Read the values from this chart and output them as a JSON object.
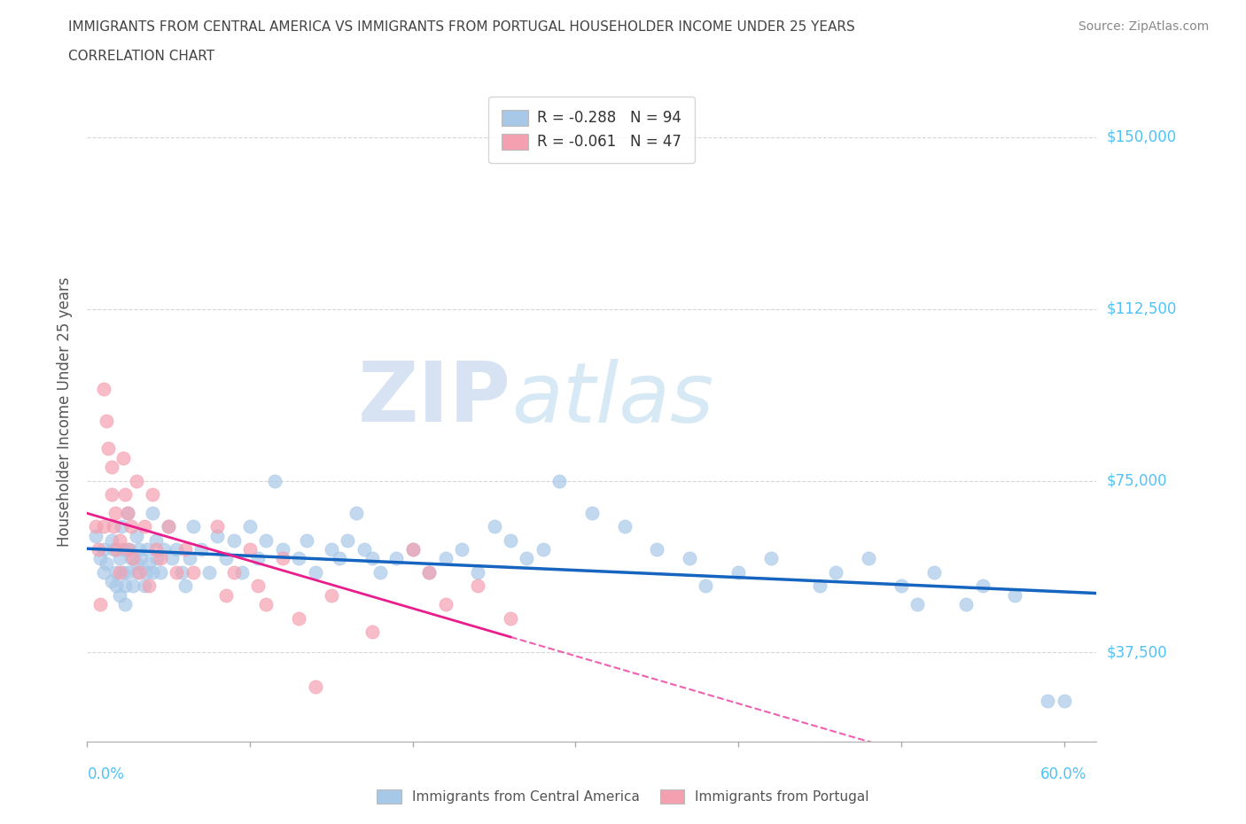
{
  "title_line1": "IMMIGRANTS FROM CENTRAL AMERICA VS IMMIGRANTS FROM PORTUGAL HOUSEHOLDER INCOME UNDER 25 YEARS",
  "title_line2": "CORRELATION CHART",
  "source_text": "Source: ZipAtlas.com",
  "ylabel": "Householder Income Under 25 years",
  "xlim": [
    0.0,
    0.62
  ],
  "ylim": [
    18000,
    162000
  ],
  "yticks": [
    37500,
    75000,
    112500,
    150000
  ],
  "ytick_labels": [
    "$37,500",
    "$75,000",
    "$112,500",
    "$150,000"
  ],
  "xticks": [
    0.0,
    0.1,
    0.2,
    0.3,
    0.4,
    0.5,
    0.6
  ],
  "watermark_zip": "ZIP",
  "watermark_atlas": "atlas",
  "blue_color": "#a8c8e8",
  "pink_color": "#f4a0b0",
  "blue_line_color": "#1565C0",
  "pink_line_color": "#E91E8C",
  "text_color": "#4fc3f7",
  "title_color": "#555555",
  "legend_r1": "R = -0.288",
  "legend_n1": "N = 94",
  "legend_r2": "R = -0.061",
  "legend_n2": "N = 47",
  "blue_scatter_x": [
    0.005,
    0.008,
    0.01,
    0.01,
    0.012,
    0.015,
    0.015,
    0.016,
    0.018,
    0.018,
    0.02,
    0.02,
    0.021,
    0.022,
    0.022,
    0.023,
    0.023,
    0.025,
    0.025,
    0.026,
    0.027,
    0.028,
    0.03,
    0.03,
    0.031,
    0.032,
    0.033,
    0.035,
    0.036,
    0.037,
    0.038,
    0.04,
    0.04,
    0.042,
    0.043,
    0.045,
    0.047,
    0.05,
    0.052,
    0.055,
    0.058,
    0.06,
    0.063,
    0.065,
    0.07,
    0.075,
    0.08,
    0.085,
    0.09,
    0.095,
    0.1,
    0.105,
    0.11,
    0.115,
    0.12,
    0.13,
    0.135,
    0.14,
    0.15,
    0.155,
    0.16,
    0.165,
    0.17,
    0.175,
    0.18,
    0.19,
    0.2,
    0.21,
    0.22,
    0.23,
    0.24,
    0.25,
    0.26,
    0.27,
    0.28,
    0.29,
    0.31,
    0.33,
    0.35,
    0.37,
    0.38,
    0.4,
    0.42,
    0.45,
    0.46,
    0.48,
    0.5,
    0.51,
    0.52,
    0.54,
    0.55,
    0.57,
    0.59,
    0.6
  ],
  "blue_scatter_y": [
    63000,
    58000,
    55000,
    60000,
    57000,
    62000,
    53000,
    60000,
    55000,
    52000,
    58000,
    50000,
    65000,
    60000,
    55000,
    52000,
    48000,
    68000,
    55000,
    60000,
    58000,
    52000,
    63000,
    57000,
    55000,
    60000,
    58000,
    52000,
    55000,
    60000,
    57000,
    68000,
    55000,
    62000,
    58000,
    55000,
    60000,
    65000,
    58000,
    60000,
    55000,
    52000,
    58000,
    65000,
    60000,
    55000,
    63000,
    58000,
    62000,
    55000,
    65000,
    58000,
    62000,
    75000,
    60000,
    58000,
    62000,
    55000,
    60000,
    58000,
    62000,
    68000,
    60000,
    58000,
    55000,
    58000,
    60000,
    55000,
    58000,
    60000,
    55000,
    65000,
    62000,
    58000,
    60000,
    75000,
    68000,
    65000,
    60000,
    58000,
    52000,
    55000,
    58000,
    52000,
    55000,
    58000,
    52000,
    48000,
    55000,
    48000,
    52000,
    50000,
    27000,
    27000
  ],
  "pink_scatter_x": [
    0.005,
    0.007,
    0.008,
    0.01,
    0.01,
    0.012,
    0.013,
    0.015,
    0.015,
    0.016,
    0.017,
    0.018,
    0.02,
    0.02,
    0.022,
    0.023,
    0.025,
    0.025,
    0.027,
    0.028,
    0.03,
    0.032,
    0.035,
    0.038,
    0.04,
    0.042,
    0.045,
    0.05,
    0.055,
    0.06,
    0.065,
    0.08,
    0.085,
    0.09,
    0.1,
    0.105,
    0.11,
    0.12,
    0.13,
    0.14,
    0.15,
    0.175,
    0.2,
    0.21,
    0.22,
    0.24,
    0.26
  ],
  "pink_scatter_y": [
    65000,
    60000,
    48000,
    95000,
    65000,
    88000,
    82000,
    78000,
    72000,
    65000,
    68000,
    60000,
    62000,
    55000,
    80000,
    72000,
    68000,
    60000,
    65000,
    58000,
    75000,
    55000,
    65000,
    52000,
    72000,
    60000,
    58000,
    65000,
    55000,
    60000,
    55000,
    65000,
    50000,
    55000,
    60000,
    52000,
    48000,
    58000,
    45000,
    30000,
    50000,
    42000,
    60000,
    55000,
    48000,
    52000,
    45000
  ]
}
